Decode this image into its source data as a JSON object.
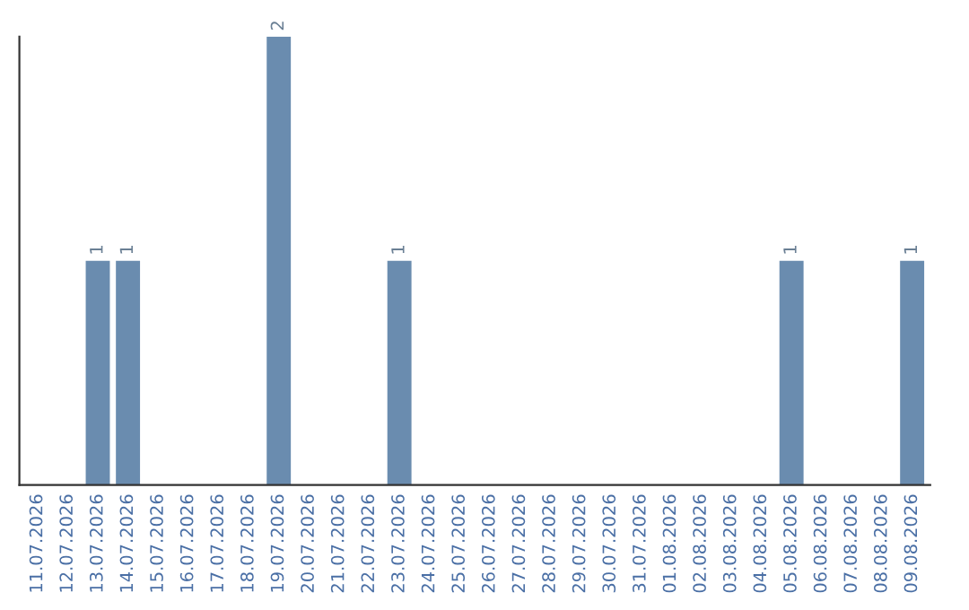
{
  "chart_data": {
    "type": "bar",
    "categories": [
      "11.07.2026",
      "12.07.2026",
      "13.07.2026",
      "14.07.2026",
      "15.07.2026",
      "16.07.2026",
      "17.07.2026",
      "18.07.2026",
      "19.07.2026",
      "20.07.2026",
      "21.07.2026",
      "22.07.2026",
      "23.07.2026",
      "24.07.2026",
      "25.07.2026",
      "26.07.2026",
      "27.07.2026",
      "28.07.2026",
      "29.07.2026",
      "30.07.2026",
      "31.07.2026",
      "01.08.2026",
      "02.08.2026",
      "03.08.2026",
      "04.08.2026",
      "05.08.2026",
      "06.08.2026",
      "07.08.2026",
      "08.08.2026",
      "09.08.2026"
    ],
    "values": [
      0,
      0,
      1,
      1,
      0,
      0,
      0,
      0,
      2,
      0,
      0,
      0,
      1,
      0,
      0,
      0,
      0,
      0,
      0,
      0,
      0,
      0,
      0,
      0,
      0,
      1,
      0,
      0,
      0,
      1
    ],
    "value_labels": [
      null,
      null,
      "1",
      "1",
      null,
      null,
      null,
      null,
      "2",
      null,
      null,
      null,
      "1",
      null,
      null,
      null,
      null,
      null,
      null,
      null,
      null,
      null,
      null,
      null,
      null,
      "1",
      null,
      null,
      null,
      "1"
    ],
    "color": "#6a8caf",
    "ylim": [
      0,
      2
    ],
    "tick_labels": "x",
    "grid": false,
    "legend": false
  }
}
